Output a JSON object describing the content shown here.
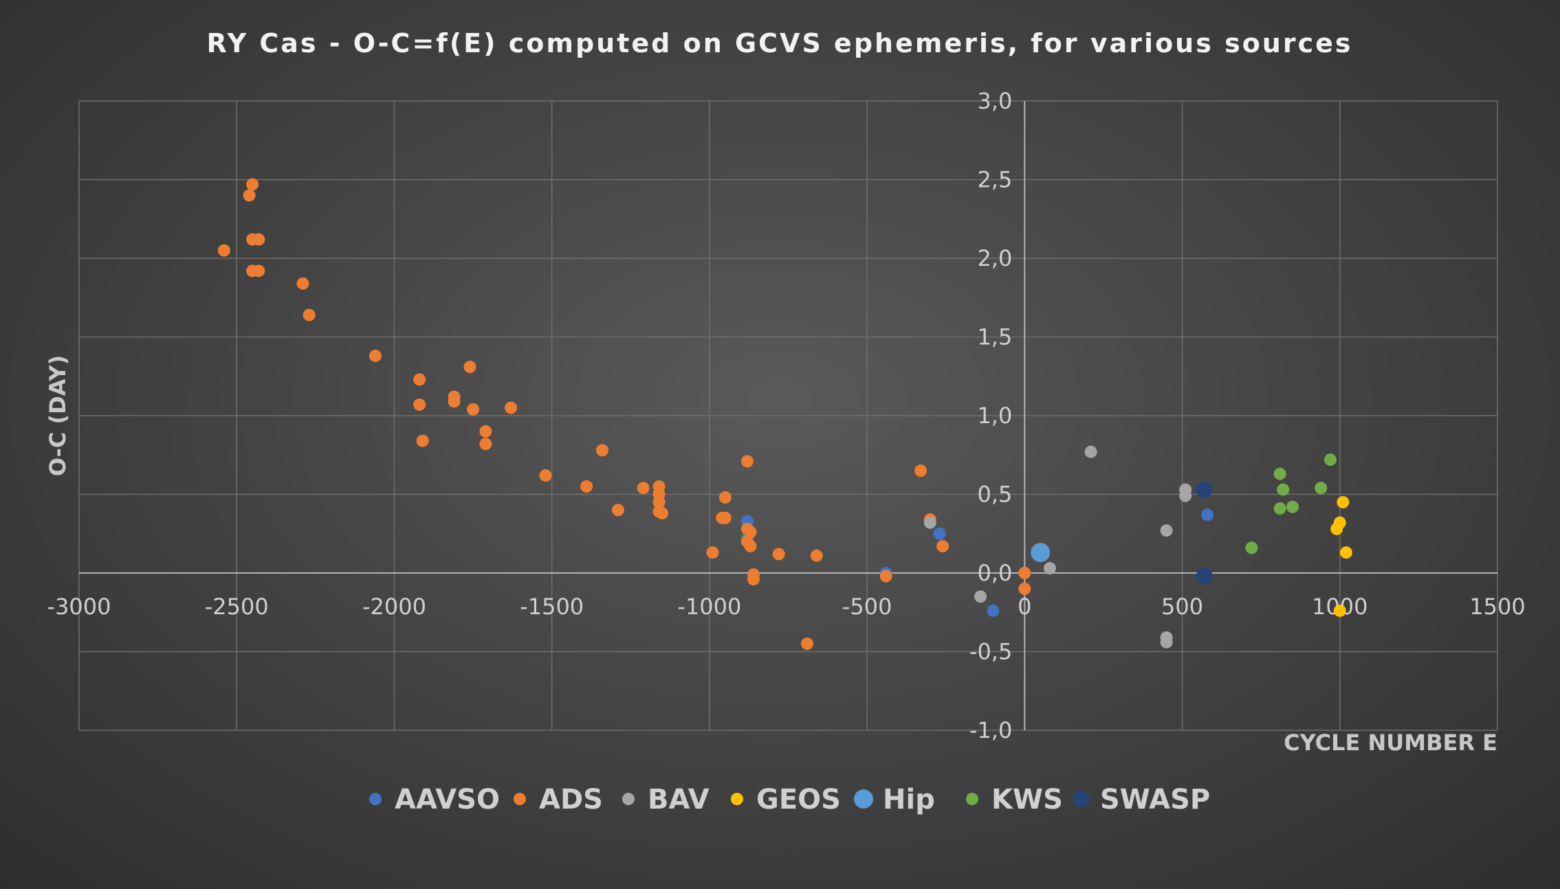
{
  "chart_data": {
    "type": "scatter",
    "title": "RY Cas - O-C=f(E) computed on GCVS ephemeris, for various sources",
    "xlabel": "CYCLE NUMBER E",
    "ylabel": "O-C (DAY)",
    "xlim": [
      -3000,
      1500
    ],
    "ylim": [
      -1.0,
      3.0
    ],
    "x_ticks": [
      -3000,
      -2500,
      -2000,
      -1500,
      -1000,
      -500,
      0,
      500,
      1000,
      1500
    ],
    "x_tick_labels": [
      "-3000",
      "-2500",
      "-2000",
      "-1500",
      "-1000",
      "-500",
      "0",
      "500",
      "1000",
      "1500"
    ],
    "y_ticks": [
      -1.0,
      -0.5,
      0.0,
      0.5,
      1.0,
      1.5,
      2.0,
      2.5,
      3.0
    ],
    "y_tick_labels": [
      "-1,0",
      "-0,5",
      "0,0",
      "0,5",
      "1,0",
      "1,5",
      "2,0",
      "2,5",
      "3,0"
    ],
    "grid": true,
    "legend_position": "bottom",
    "series": [
      {
        "name": "AAVSO",
        "color": "#4472c4",
        "marker_size": 9,
        "points": [
          [
            -880,
            0.33
          ],
          [
            -880,
            0.22
          ],
          [
            -440,
            0.0
          ],
          [
            -270,
            0.25
          ],
          [
            -100,
            -0.24
          ],
          [
            580,
            0.37
          ]
        ]
      },
      {
        "name": "ADS",
        "color": "#ed7d31",
        "marker_size": 9,
        "points": [
          [
            -2540,
            2.05
          ],
          [
            -2460,
            2.4
          ],
          [
            -2450,
            2.47
          ],
          [
            -2450,
            2.12
          ],
          [
            -2430,
            2.12
          ],
          [
            -2450,
            1.92
          ],
          [
            -2430,
            1.92
          ],
          [
            -2290,
            1.84
          ],
          [
            -2270,
            1.64
          ],
          [
            -2060,
            1.38
          ],
          [
            -1920,
            1.23
          ],
          [
            -1920,
            1.07
          ],
          [
            -1910,
            0.84
          ],
          [
            -1810,
            1.12
          ],
          [
            -1810,
            1.09
          ],
          [
            -1760,
            1.31
          ],
          [
            -1750,
            1.04
          ],
          [
            -1710,
            0.9
          ],
          [
            -1710,
            0.82
          ],
          [
            -1630,
            1.05
          ],
          [
            -1520,
            0.62
          ],
          [
            -1390,
            0.55
          ],
          [
            -1340,
            0.78
          ],
          [
            -1290,
            0.4
          ],
          [
            -1210,
            0.54
          ],
          [
            -1160,
            0.55
          ],
          [
            -1160,
            0.5
          ],
          [
            -1160,
            0.45
          ],
          [
            -1160,
            0.39
          ],
          [
            -1150,
            0.38
          ],
          [
            -990,
            0.13
          ],
          [
            -960,
            0.35
          ],
          [
            -950,
            0.48
          ],
          [
            -950,
            0.35
          ],
          [
            -880,
            0.71
          ],
          [
            -880,
            0.28
          ],
          [
            -870,
            0.26
          ],
          [
            -880,
            0.2
          ],
          [
            -870,
            0.17
          ],
          [
            -860,
            -0.01
          ],
          [
            -860,
            -0.04
          ],
          [
            -780,
            0.12
          ],
          [
            -690,
            -0.45
          ],
          [
            -660,
            0.11
          ],
          [
            -440,
            -0.02
          ],
          [
            -330,
            0.65
          ],
          [
            -300,
            0.34
          ],
          [
            -260,
            0.17
          ],
          [
            0,
            0.0
          ],
          [
            0,
            -0.1
          ]
        ]
      },
      {
        "name": "BAV",
        "color": "#a5a5a5",
        "marker_size": 9,
        "points": [
          [
            -300,
            0.32
          ],
          [
            -140,
            -0.15
          ],
          [
            80,
            0.03
          ],
          [
            210,
            0.77
          ],
          [
            450,
            0.27
          ],
          [
            450,
            -0.41
          ],
          [
            450,
            -0.44
          ],
          [
            510,
            0.53
          ],
          [
            510,
            0.49
          ]
        ]
      },
      {
        "name": "GEOS",
        "color": "#ffc000",
        "marker_size": 9,
        "points": [
          [
            990,
            0.28
          ],
          [
            1000,
            0.32
          ],
          [
            1000,
            -0.24
          ],
          [
            1010,
            0.45
          ],
          [
            1020,
            0.13
          ]
        ]
      },
      {
        "name": "Hip",
        "color": "#5b9bd5",
        "marker_size": 14,
        "points": [
          [
            50,
            0.13
          ]
        ]
      },
      {
        "name": "KWS",
        "color": "#70ad47",
        "marker_size": 9,
        "points": [
          [
            720,
            0.16
          ],
          [
            810,
            0.63
          ],
          [
            810,
            0.41
          ],
          [
            820,
            0.53
          ],
          [
            850,
            0.42
          ],
          [
            940,
            0.54
          ],
          [
            970,
            0.72
          ]
        ]
      },
      {
        "name": "SWASP",
        "color": "#264478",
        "marker_size": 12,
        "points": [
          [
            570,
            0.53
          ],
          [
            570,
            -0.02
          ]
        ]
      }
    ]
  }
}
